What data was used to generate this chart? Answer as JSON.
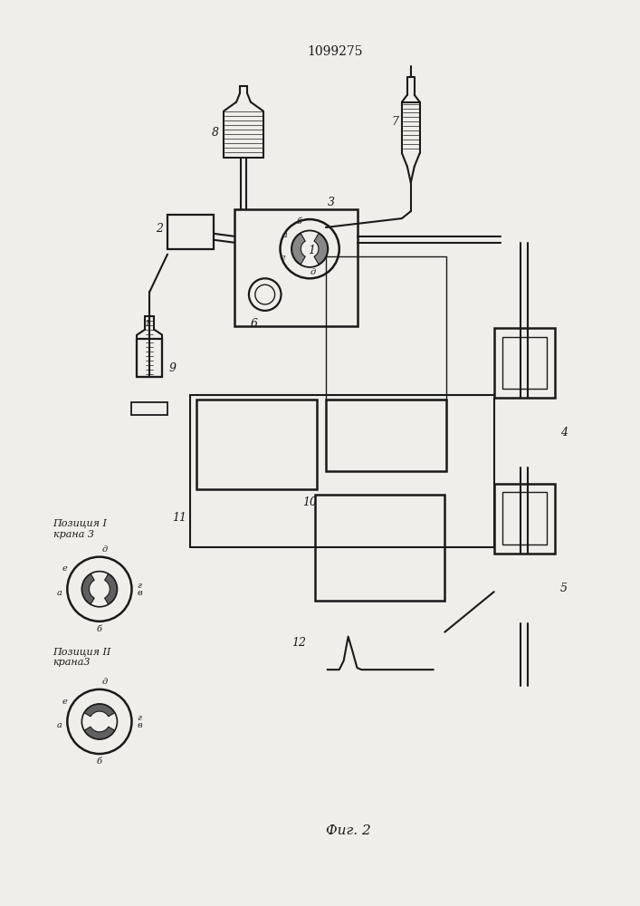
{
  "title": "1099275",
  "fig_label": "Фиг. 2",
  "bg_color": "#f0eeea",
  "line_color": "#1a1a1a",
  "lw": 1.5,
  "pos1_label": "Позиция I\nкрана 3",
  "pos2_label": "Позиция II\nкрана3",
  "figsize": [
    7.07,
    10.0
  ],
  "dpi": 100
}
